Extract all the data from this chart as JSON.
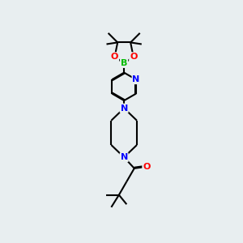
{
  "background_color": "#e8eef0",
  "line_color": "#000000",
  "bond_width": 1.5,
  "atom_colors": {
    "N": "#0000ff",
    "O": "#ff0000",
    "B": "#00bb00",
    "C": "#000000"
  },
  "figsize": [
    3.0,
    3.0
  ],
  "dpi": 100
}
